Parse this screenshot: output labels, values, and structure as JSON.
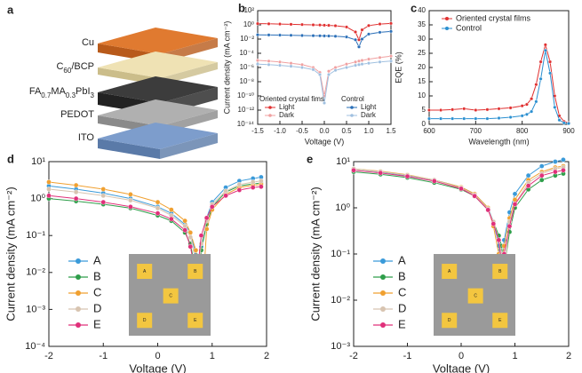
{
  "diagram": {
    "panel": "a",
    "layers": [
      [
        "Cu"
      ],
      [
        "C",
        "60",
        "/BCP"
      ],
      [
        "FA",
        "0.7",
        "MA",
        "0.3",
        "PbI",
        "3"
      ],
      [
        "PEDOT"
      ],
      [
        "ITO"
      ]
    ]
  },
  "chart_data": [
    {
      "type": "line",
      "panel": "b",
      "xlabel": "Voltage (V)",
      "ylabel": "Current density (mA cm⁻²)",
      "log_y": true,
      "legend": "lower left",
      "x": [
        -1.5,
        -1.25,
        -1,
        -0.75,
        -0.5,
        -0.25,
        -0.1,
        0,
        0.1,
        0.25,
        0.5,
        0.7,
        0.78,
        0.85,
        1,
        1.25,
        1.5
      ],
      "xlim": [
        -1.5,
        1.5
      ],
      "xticks": [
        -1.5,
        {
          "value": -1,
          "label": "-1.0"
        },
        -0.5,
        {
          "value": 0,
          "label": "0.0"
        },
        0.5,
        {
          "value": 1,
          "label": "1.0"
        },
        1.5
      ],
      "ylim": [
        1e-14,
        100
      ],
      "yticks": [
        {
          "value": 1e-14,
          "label": "10⁻¹⁴"
        },
        {
          "value": 1e-12,
          "label": "10⁻¹²"
        },
        {
          "value": 1e-10,
          "label": "10⁻¹⁰"
        },
        {
          "value": 1e-08,
          "label": "10⁻⁸"
        },
        {
          "value": 1e-06,
          "label": "10⁻⁶"
        },
        {
          "value": 0.0001,
          "label": "10⁻⁴"
        },
        {
          "value": 0.01,
          "label": "10⁻²"
        },
        {
          "value": 1,
          "label": "10⁰"
        },
        {
          "value": 100,
          "label": "10²"
        }
      ],
      "groups": [
        {
          "title": "Oriented crystal fims",
          "color": "#e03030",
          "series": [
            {
              "name": "Light",
              "color": "#e03030",
              "values": [
                1.5,
                1.4,
                1.3,
                1.2,
                1.1,
                1.0,
                0.95,
                0.9,
                0.85,
                0.75,
                0.5,
                0.1,
                0.008,
                0.2,
                0.8,
                1.3,
                1.6
              ]
            },
            {
              "name": "Dark",
              "color": "#f0a0a0",
              "values": [
                1e-05,
                8e-06,
                6e-06,
                4e-06,
                2.5e-06,
                1e-06,
                2e-07,
                1e-10,
                3e-07,
                1e-06,
                3e-06,
                6e-06,
                8e-06,
                1e-05,
                1.5e-05,
                2.5e-05,
                4e-05
              ]
            }
          ]
        },
        {
          "title": "Control",
          "color": "#2a6fb8",
          "series": [
            {
              "name": "Light",
              "color": "#2a6fb8",
              "values": [
                0.04,
                0.038,
                0.036,
                0.034,
                0.032,
                0.03,
                0.029,
                0.028,
                0.027,
                0.025,
                0.02,
                0.008,
                0.0008,
                0.01,
                0.05,
                0.09,
                0.12
              ]
            },
            {
              "name": "Dark",
              "color": "#a0c0e0",
              "values": [
                3e-06,
                2.5e-06,
                2e-06,
                1.5e-06,
                1e-06,
                5e-07,
                1e-07,
                1e-11,
                1e-07,
                4e-07,
                1e-06,
                2e-06,
                2.5e-06,
                3e-06,
                4e-06,
                6e-06,
                8e-06
              ]
            }
          ]
        }
      ]
    },
    {
      "type": "line",
      "panel": "c",
      "xlabel": "Wavelength (nm)",
      "ylabel": "EQE (%)",
      "log_y": false,
      "legend": "upper right",
      "x": [
        600,
        625,
        650,
        675,
        700,
        725,
        750,
        775,
        800,
        810,
        820,
        830,
        840,
        850,
        860,
        870,
        880,
        890,
        900
      ],
      "xlim": [
        600,
        900
      ],
      "xticks": [
        600,
        700,
        800,
        900
      ],
      "ylim": [
        0,
        40
      ],
      "yticks": [
        0,
        5,
        10,
        15,
        20,
        25,
        30,
        35,
        40
      ],
      "series": [
        {
          "name": "Oriented crystal films",
          "color": "#e03030",
          "values": [
            5,
            5,
            5.2,
            5.5,
            5,
            5.2,
            5.5,
            5.8,
            6.5,
            7,
            9,
            14,
            22,
            28,
            22,
            10,
            3,
            1,
            0.5
          ]
        },
        {
          "name": "Control",
          "color": "#2a8fd0",
          "values": [
            2,
            2,
            2,
            2,
            2,
            2,
            2.2,
            2.5,
            3,
            3.5,
            4.5,
            8,
            16,
            26,
            18,
            6,
            1.5,
            0.5,
            0.3
          ]
        }
      ]
    },
    {
      "type": "line",
      "panel": "d",
      "xlabel": "Voltage (V)",
      "ylabel": "Current density (mA cm⁻²)",
      "log_y": true,
      "legend": "lower left",
      "inset": [
        "A",
        "B",
        "C",
        "D",
        "E"
      ],
      "x": [
        -2,
        -1.5,
        -1,
        -0.5,
        0,
        0.25,
        0.5,
        0.6,
        0.7,
        0.75,
        0.8,
        0.9,
        1,
        1.25,
        1.5,
        1.75,
        1.9
      ],
      "xlim": [
        -2,
        2
      ],
      "xticks": [
        -2,
        -1,
        0,
        1,
        2
      ],
      "ylim": [
        0.0001,
        10
      ],
      "yticks": [
        {
          "value": 0.0001,
          "label": "10⁻⁴"
        },
        {
          "value": 0.001,
          "label": "10⁻³"
        },
        {
          "value": 0.01,
          "label": "10⁻²"
        },
        {
          "value": 0.1,
          "label": "10⁻¹"
        },
        {
          "value": 1,
          "label": "10⁰"
        },
        {
          "value": 10,
          "label": "10¹"
        }
      ],
      "series": [
        {
          "name": "A",
          "color": "#3a9ad9",
          "values": [
            2.2,
            1.8,
            1.4,
            1.0,
            0.6,
            0.4,
            0.2,
            0.12,
            0.03,
            0.008,
            0.05,
            0.3,
            0.8,
            2,
            3,
            3.5,
            3.8
          ]
        },
        {
          "name": "B",
          "color": "#2e9e4a",
          "values": [
            1.0,
            0.85,
            0.7,
            0.55,
            0.35,
            0.25,
            0.12,
            0.06,
            0.01,
            0.006,
            0.04,
            0.2,
            0.6,
            1.5,
            2.2,
            2.5,
            2.6
          ]
        },
        {
          "name": "C",
          "color": "#f0a030",
          "values": [
            2.8,
            2.3,
            1.8,
            1.3,
            0.8,
            0.5,
            0.25,
            0.12,
            0.04,
            0.012,
            0.0008,
            0.15,
            0.5,
            1.3,
            2,
            2.3,
            2.4
          ]
        },
        {
          "name": "D",
          "color": "#d8c4b0",
          "values": [
            1.8,
            1.5,
            1.2,
            0.9,
            0.55,
            0.35,
            0.18,
            0.09,
            0.02,
            0.01,
            0.06,
            0.25,
            0.7,
            1.6,
            2.4,
            2.8,
            3
          ]
        },
        {
          "name": "E",
          "color": "#e0307a",
          "values": [
            1.2,
            1.0,
            0.8,
            0.6,
            0.4,
            0.28,
            0.14,
            0.05,
            0.008,
            0.02,
            0.1,
            0.3,
            0.6,
            1.2,
            1.7,
            2,
            2.1
          ]
        }
      ]
    },
    {
      "type": "line",
      "panel": "e",
      "xlabel": "Voltage (V)",
      "ylabel": "Current density (mA cm⁻²)",
      "log_y": true,
      "legend": "lower left",
      "inset": [
        "A",
        "B",
        "C",
        "D",
        "E"
      ],
      "x": [
        -2,
        -1.5,
        -1,
        -0.5,
        0,
        0.25,
        0.5,
        0.6,
        0.7,
        0.75,
        0.8,
        0.9,
        1,
        1.25,
        1.5,
        1.75,
        1.9
      ],
      "xlim": [
        -2,
        2
      ],
      "xticks": [
        -2,
        -1,
        0,
        1,
        2
      ],
      "ylim": [
        0.001,
        10
      ],
      "yticks": [
        {
          "value": 0.001,
          "label": "10⁻³"
        },
        {
          "value": 0.01,
          "label": "10⁻²"
        },
        {
          "value": 0.1,
          "label": "10⁻¹"
        },
        {
          "value": 1,
          "label": "10⁰"
        },
        {
          "value": 10,
          "label": "10¹"
        }
      ],
      "series": [
        {
          "name": "A",
          "color": "#3a9ad9",
          "values": [
            7,
            6,
            5,
            4,
            2.8,
            2,
            1,
            0.5,
            0.15,
            0.04,
            0.2,
            0.8,
            2,
            5,
            8,
            10,
            11
          ]
        },
        {
          "name": "B",
          "color": "#2e9e4a",
          "values": [
            6,
            5.3,
            4.5,
            3.5,
            2.5,
            1.8,
            0.9,
            0.5,
            0.25,
            0.15,
            0.05,
            0.3,
            1,
            2.5,
            4,
            5,
            5.5
          ]
        },
        {
          "name": "C",
          "color": "#f0a030",
          "values": [
            7,
            6.2,
            5.2,
            4,
            2.8,
            2,
            1,
            0.4,
            0.1,
            0.05,
            0.15,
            0.6,
            1.5,
            4,
            6,
            7.5,
            8
          ]
        },
        {
          "name": "D",
          "color": "#d8c4b0",
          "values": [
            7,
            6.1,
            5.1,
            4,
            2.7,
            1.9,
            0.95,
            0.5,
            0.2,
            0.1,
            0.04,
            0.5,
            1.2,
            3.5,
            5.5,
            7,
            7.5
          ]
        },
        {
          "name": "E",
          "color": "#e0307a",
          "values": [
            6.5,
            5.7,
            4.8,
            3.8,
            2.6,
            1.8,
            0.9,
            0.45,
            0.2,
            0.06,
            0.1,
            0.4,
            1.2,
            3,
            5,
            6,
            6.5
          ]
        }
      ]
    }
  ]
}
